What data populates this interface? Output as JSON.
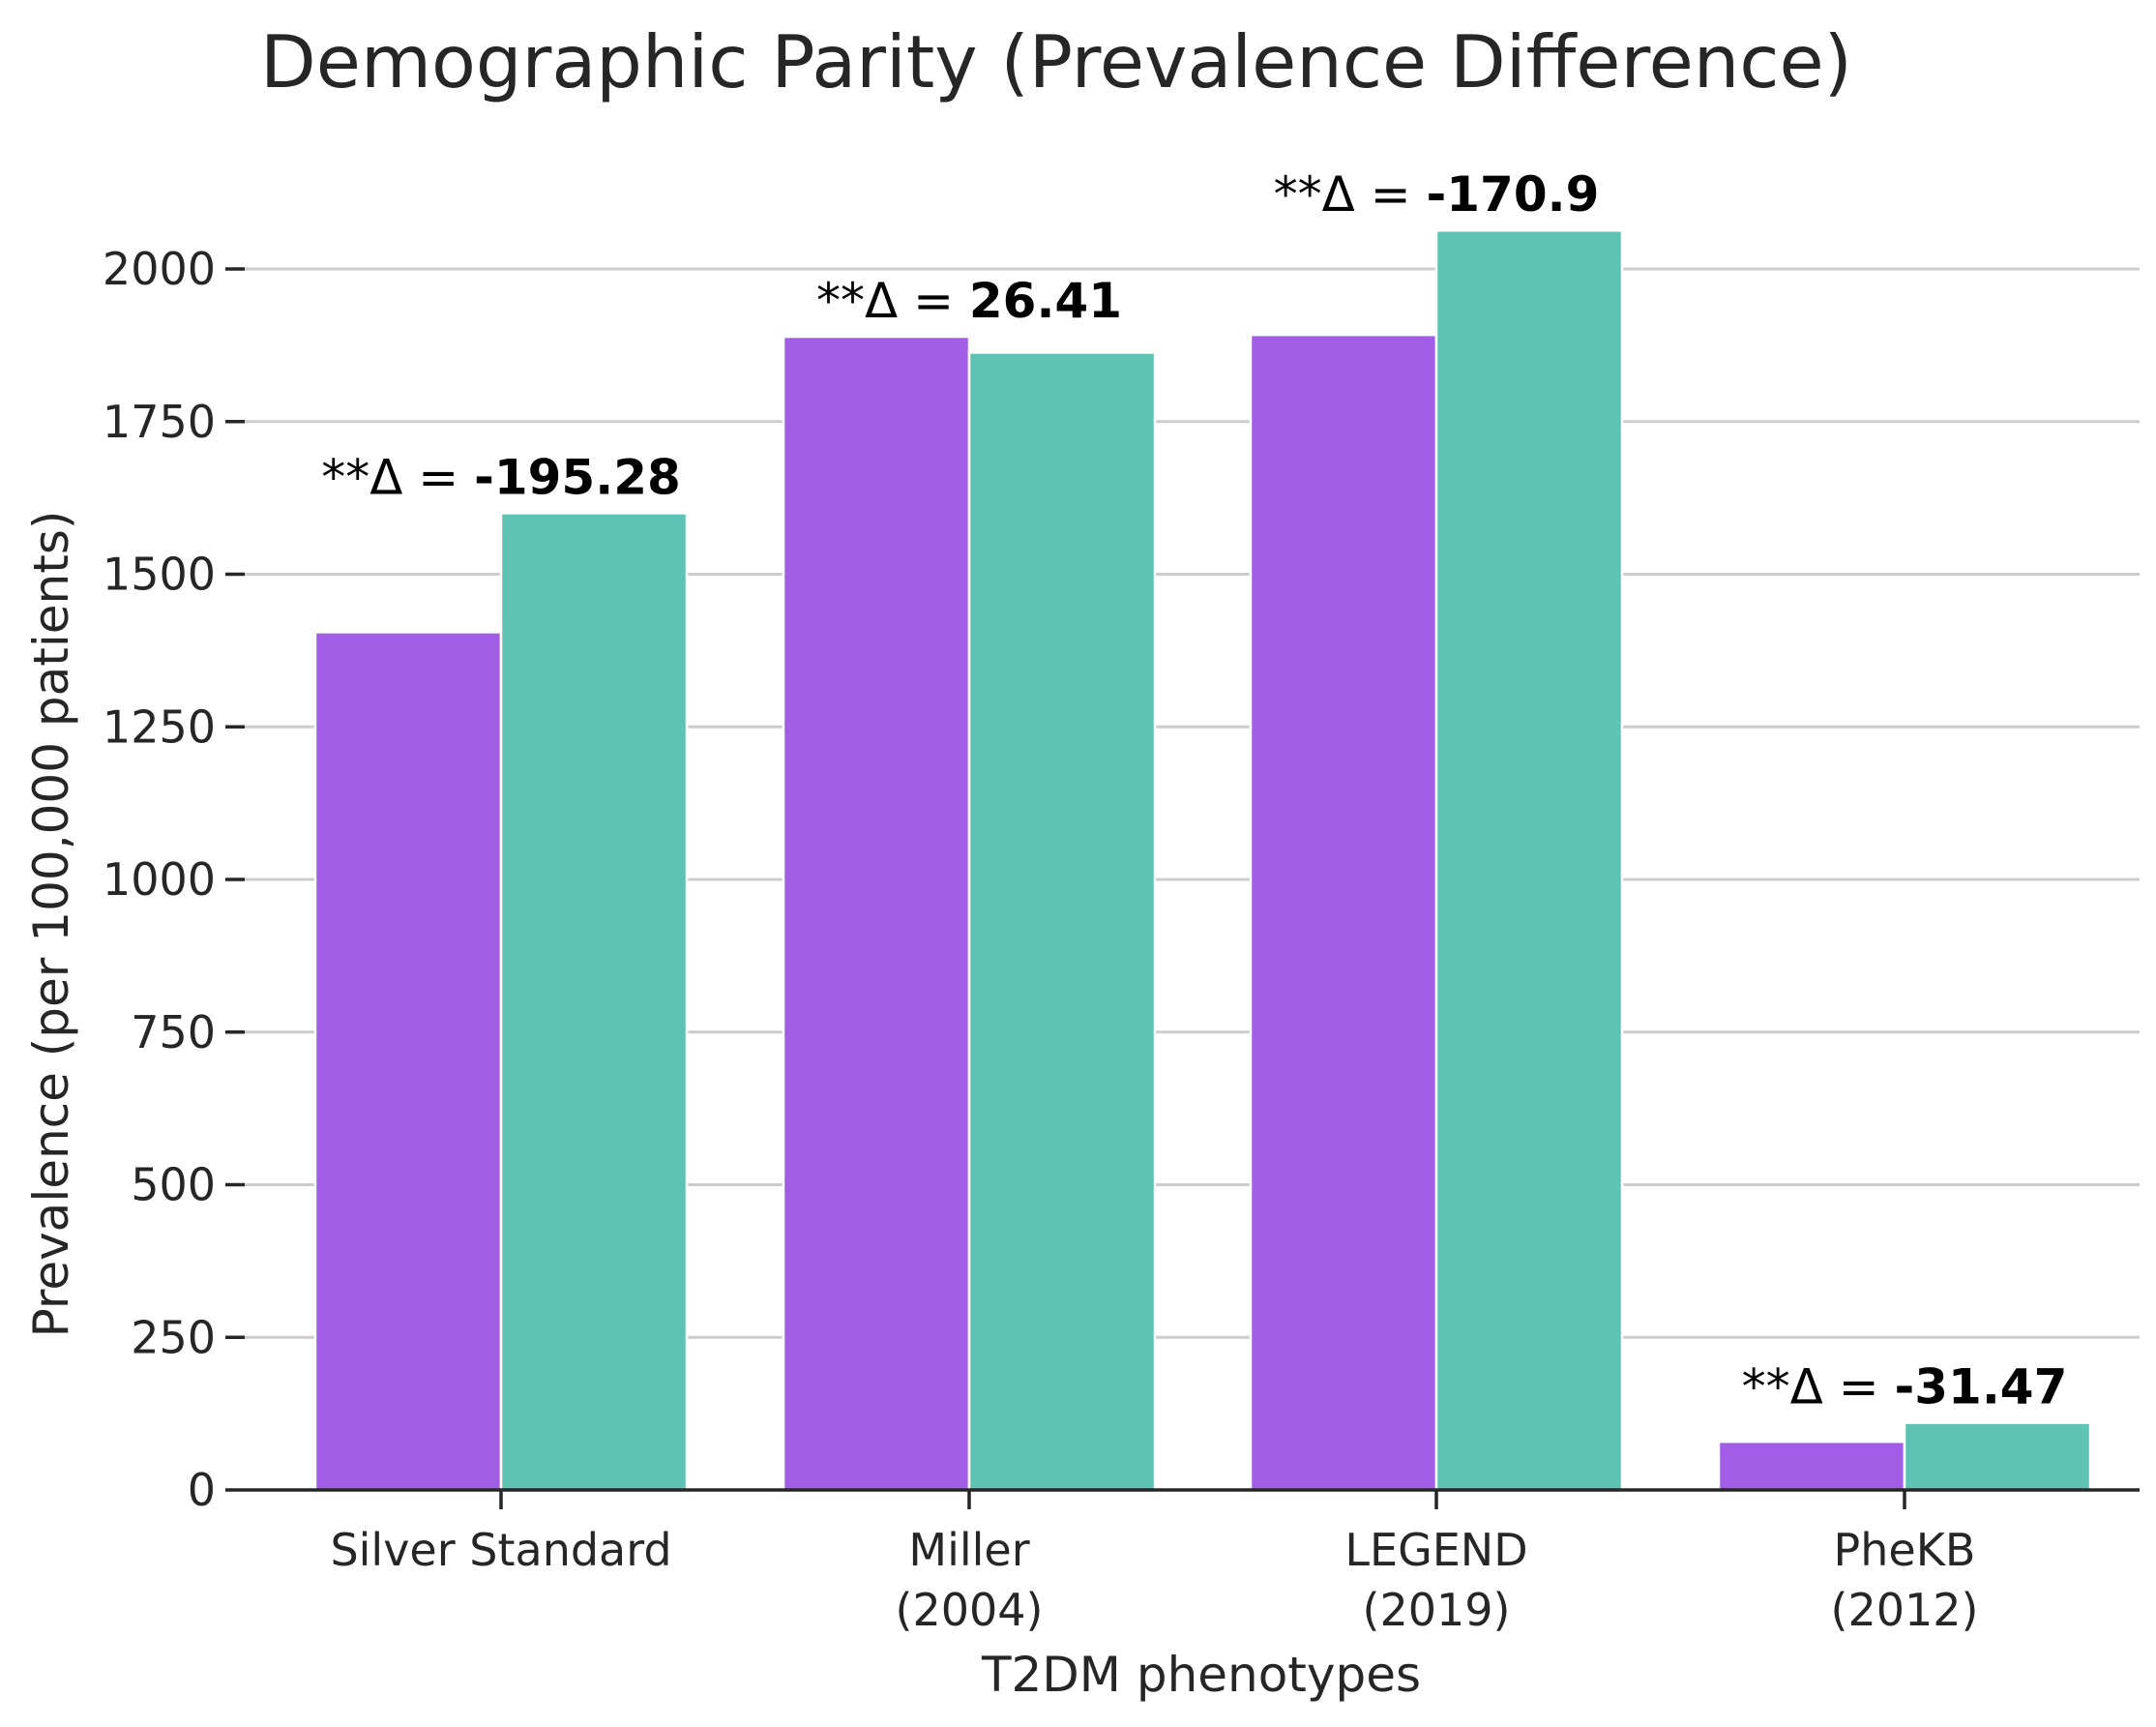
{
  "chart_data": {
    "type": "bar",
    "title": "Demographic Parity (Prevalence Difference)",
    "xlabel": "T2DM phenotypes",
    "ylabel": "Prevalence (per 100,000 patients)",
    "categories": [
      [
        "Silver Standard"
      ],
      [
        "Miller",
        "(2004)"
      ],
      [
        "LEGEND",
        "(2019)"
      ],
      [
        "PheKB",
        "(2012)"
      ]
    ],
    "series": [
      {
        "color": "#a25de6",
        "values": [
          1405,
          1889,
          1892,
          79
        ]
      },
      {
        "color": "#5ec3b4",
        "values": [
          1600,
          1863,
          2063,
          110
        ]
      }
    ],
    "annotations": [
      {
        "prefix": "**Δ = ",
        "value": "-195.28"
      },
      {
        "prefix": "**Δ = ",
        "value": "26.41"
      },
      {
        "prefix": "**Δ = ",
        "value": "-170.9"
      },
      {
        "prefix": "**Δ = ",
        "value": "-31.47"
      }
    ],
    "yticks": [
      0,
      250,
      500,
      750,
      1000,
      1250,
      1500,
      1750,
      2000
    ],
    "ylim": [
      0,
      2150
    ],
    "grid": true,
    "legend": "none"
  }
}
